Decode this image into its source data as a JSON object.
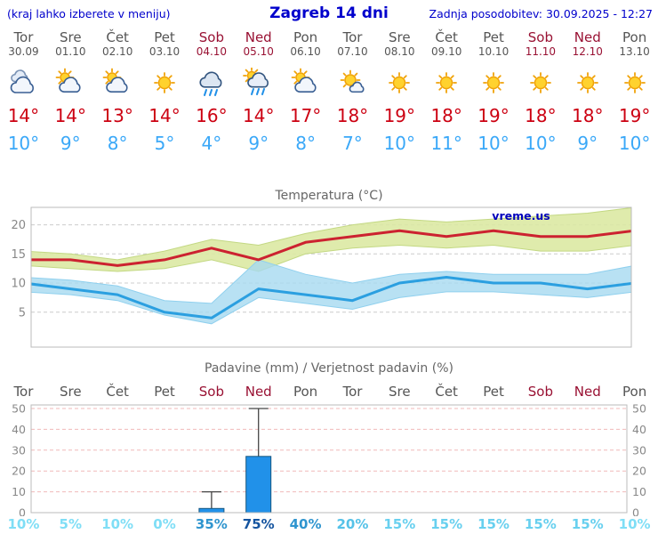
{
  "header": {
    "left_note": "(kraj lahko izberete v meniju)",
    "title": "Zagreb 14 dni",
    "updated": "Zadnja posodobitev: 30.09.2025 - 12:27"
  },
  "colors": {
    "link_blue": "#0000cc",
    "weekday_text": "#555555",
    "weekend_text": "#991133",
    "high_temp": "#cc0011",
    "low_temp": "#3aa8f8",
    "chart_title": "#666666",
    "axis_text": "#888888",
    "grid_gray": "#cccccc",
    "precip_grid_pink": "#f0b9b9",
    "precip_bar_fill": "#2191e9",
    "precip_bar_stroke": "#15567f",
    "whisker": "#444444",
    "watermark_blue": "#0000bb",
    "chart_border": "#bbbbbb"
  },
  "days": [
    {
      "day": "Tor",
      "date": "30.09",
      "weekend": false,
      "icon": "cloudy",
      "high": "14°",
      "low": "10°"
    },
    {
      "day": "Sre",
      "date": "01.10",
      "weekend": false,
      "icon": "partly-cloudy",
      "high": "14°",
      "low": "9°"
    },
    {
      "day": "Čet",
      "date": "02.10",
      "weekend": false,
      "icon": "partly-cloudy",
      "high": "13°",
      "low": "8°"
    },
    {
      "day": "Pet",
      "date": "03.10",
      "weekend": false,
      "icon": "sunny",
      "high": "14°",
      "low": "5°"
    },
    {
      "day": "Sob",
      "date": "04.10",
      "weekend": true,
      "icon": "rain",
      "high": "16°",
      "low": "4°"
    },
    {
      "day": "Ned",
      "date": "05.10",
      "weekend": true,
      "icon": "sun-rain",
      "high": "14°",
      "low": "9°"
    },
    {
      "day": "Pon",
      "date": "06.10",
      "weekend": false,
      "icon": "partly-cloudy",
      "high": "17°",
      "low": "8°"
    },
    {
      "day": "Tor",
      "date": "07.10",
      "weekend": false,
      "icon": "mostly-sunny",
      "high": "18°",
      "low": "7°"
    },
    {
      "day": "Sre",
      "date": "08.10",
      "weekend": false,
      "icon": "sunny",
      "high": "19°",
      "low": "10°"
    },
    {
      "day": "Čet",
      "date": "09.10",
      "weekend": false,
      "icon": "sunny",
      "high": "18°",
      "low": "11°"
    },
    {
      "day": "Pet",
      "date": "10.10",
      "weekend": false,
      "icon": "sunny",
      "high": "19°",
      "low": "10°"
    },
    {
      "day": "Sob",
      "date": "11.10",
      "weekend": true,
      "icon": "sunny",
      "high": "18°",
      "low": "10°"
    },
    {
      "day": "Ned",
      "date": "12.10",
      "weekend": true,
      "icon": "sunny",
      "high": "18°",
      "low": "9°"
    },
    {
      "day": "Pon",
      "date": "13.10",
      "weekend": false,
      "icon": "sunny",
      "high": "19°",
      "low": "10°"
    }
  ],
  "chart_data": [
    {
      "type": "line",
      "title": "Temperatura (°C)",
      "watermark": "vreme.us",
      "categories": [
        "30.09",
        "01.10",
        "02.10",
        "03.10",
        "04.10",
        "05.10",
        "06.10",
        "07.10",
        "08.10",
        "09.10",
        "10.10",
        "11.10",
        "12.10",
        "13.10"
      ],
      "ylim": [
        -1,
        23
      ],
      "yticks": [
        5,
        10,
        15,
        20
      ],
      "series": [
        {
          "name": "max_temp",
          "color": "#cc2230",
          "values": [
            14,
            14,
            13,
            14,
            16,
            14,
            17,
            18,
            19,
            18,
            19,
            18,
            18,
            19
          ]
        },
        {
          "name": "min_temp",
          "color": "#2b9fe0",
          "values": [
            10,
            9,
            8,
            5,
            4,
            9,
            8,
            7,
            10,
            11,
            10,
            10,
            9,
            10
          ]
        }
      ],
      "bands": [
        {
          "name": "max_temp_range",
          "fill": "#dbe9a3",
          "stroke": "#c3d883",
          "opacity": 0.9,
          "upper": [
            15.5,
            15,
            14,
            15.5,
            17.5,
            16.5,
            18.5,
            20,
            21,
            20.5,
            21,
            21.5,
            22,
            23
          ],
          "lower": [
            13,
            12.5,
            12,
            12.5,
            14,
            12,
            15,
            16,
            16.5,
            16,
            16.5,
            15.5,
            15.5,
            16.5
          ]
        },
        {
          "name": "min_temp_range",
          "fill": "#a6d9f0",
          "stroke": "#8fd0ee",
          "opacity": 0.8,
          "upper": [
            11,
            10.5,
            9.5,
            7,
            6.5,
            14,
            11.5,
            10,
            11.5,
            12,
            11.5,
            11.5,
            11.5,
            13
          ],
          "lower": [
            8.5,
            8,
            7,
            4.5,
            3,
            7.5,
            6.5,
            5.5,
            7.5,
            8.5,
            8.5,
            8,
            7.5,
            8.5
          ]
        }
      ]
    },
    {
      "type": "bar",
      "title": "Padavine (mm) / Verjetnost padavin (%)",
      "categories": [
        "Tor",
        "Sre",
        "Čet",
        "Pet",
        "Sob",
        "Ned",
        "Pon",
        "Tor",
        "Sre",
        "Čet",
        "Pet",
        "Sob",
        "Ned",
        "Pon"
      ],
      "ylim": [
        0,
        52
      ],
      "yticks": [
        0,
        10,
        20,
        30,
        40,
        50
      ],
      "values_mm": [
        0,
        0,
        0,
        0,
        2,
        27,
        0,
        0,
        0,
        0,
        0,
        0,
        0,
        0
      ],
      "whisker_mm": [
        0,
        0,
        0,
        0,
        10,
        50,
        0,
        0,
        0,
        0,
        0,
        0,
        0,
        0
      ],
      "probabilities": [
        {
          "label": "10%",
          "color": "#7fdef6"
        },
        {
          "label": "5%",
          "color": "#7fdef6"
        },
        {
          "label": "10%",
          "color": "#7fdef6"
        },
        {
          "label": "0%",
          "color": "#7fdef6"
        },
        {
          "label": "35%",
          "color": "#2f95cf"
        },
        {
          "label": "75%",
          "color": "#15549f"
        },
        {
          "label": "40%",
          "color": "#2f95cf"
        },
        {
          "label": "20%",
          "color": "#55c2e8"
        },
        {
          "label": "15%",
          "color": "#68d0ef"
        },
        {
          "label": "15%",
          "color": "#68d0ef"
        },
        {
          "label": "15%",
          "color": "#68d0ef"
        },
        {
          "label": "15%",
          "color": "#68d0ef"
        },
        {
          "label": "15%",
          "color": "#68d0ef"
        },
        {
          "label": "10%",
          "color": "#7fdef6"
        }
      ]
    }
  ]
}
